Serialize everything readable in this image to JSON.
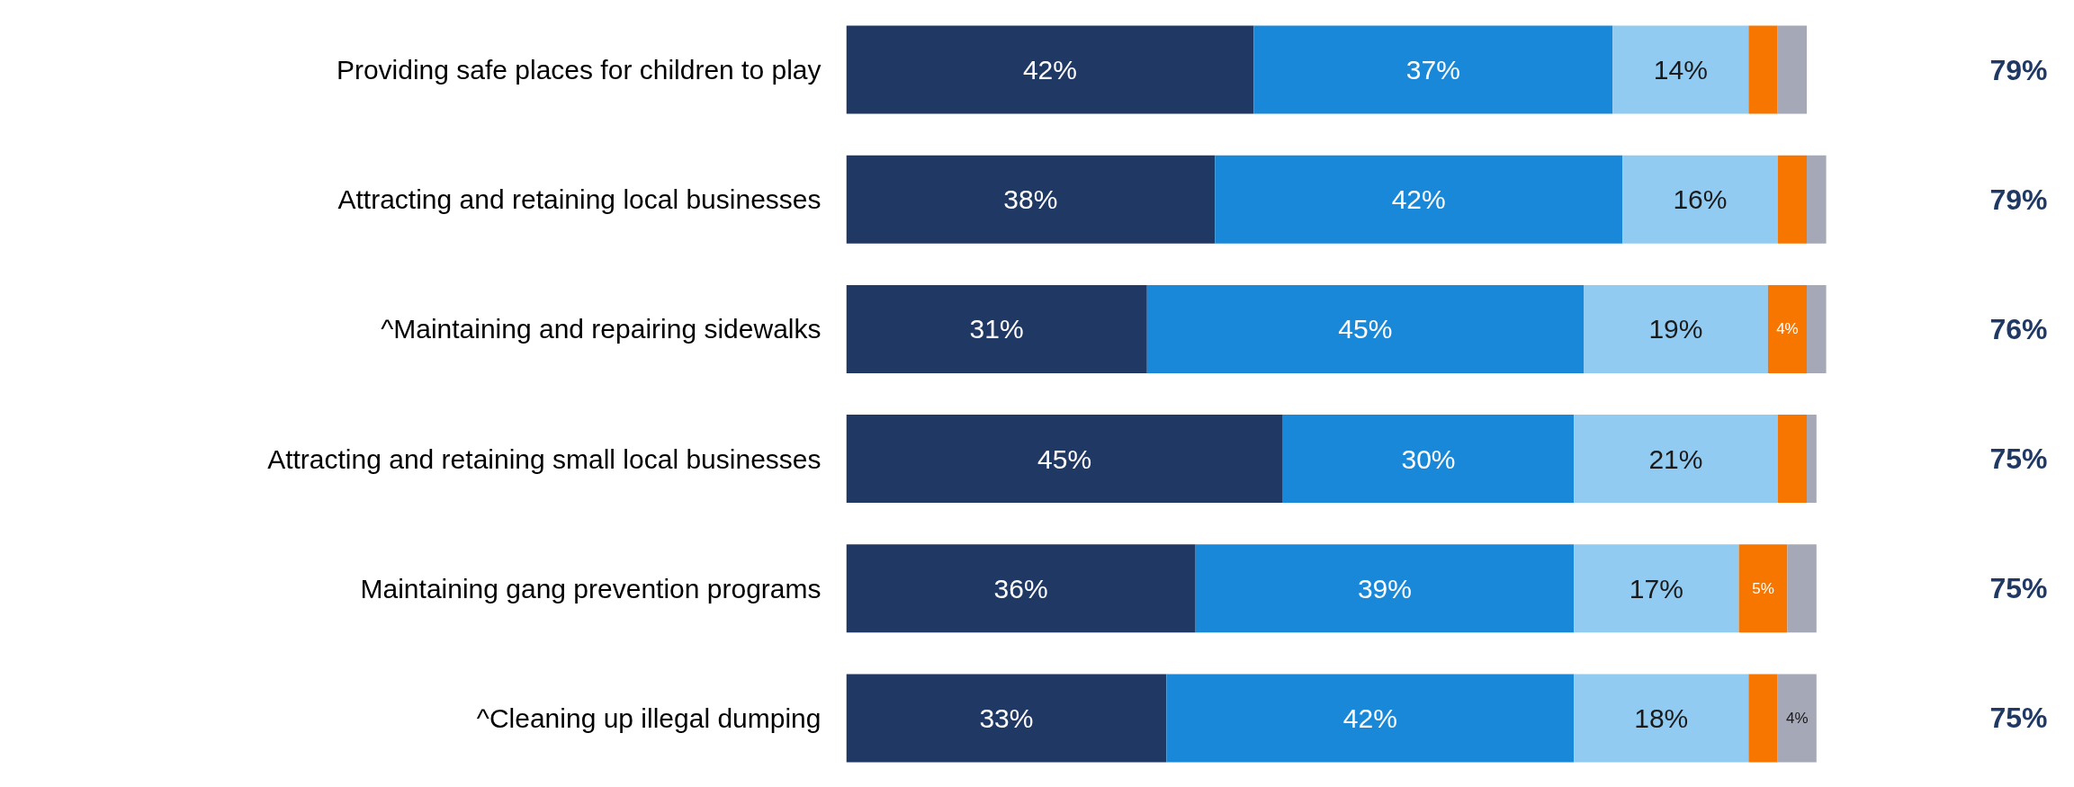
{
  "chart_data": {
    "type": "bar",
    "orientation": "horizontal",
    "stacked": true,
    "categories": [
      "Providing safe places for children to play",
      "Attracting and retaining local businesses",
      "^Maintaining and repairing sidewalks",
      "Attracting and retaining small local businesses",
      "Maintaining gang prevention programs",
      "^Cleaning up illegal dumping"
    ],
    "series": [
      {
        "color": "#1f3864",
        "values": [
          42,
          38,
          31,
          45,
          36,
          33
        ],
        "value_labels": [
          "42%",
          "38%",
          "31%",
          "45%",
          "36%",
          "33%"
        ]
      },
      {
        "color": "#1a88d8",
        "values": [
          37,
          42,
          45,
          30,
          39,
          42
        ],
        "value_labels": [
          "37%",
          "42%",
          "45%",
          "30%",
          "39%",
          "42%"
        ]
      },
      {
        "color": "#92cbf2",
        "values": [
          14,
          16,
          19,
          21,
          17,
          18
        ],
        "value_labels": [
          "14%",
          "16%",
          "19%",
          "21%",
          "17%",
          "18%"
        ]
      },
      {
        "color": "#f77600",
        "values": [
          3,
          3,
          4,
          3,
          5,
          3
        ],
        "value_labels": [
          null,
          null,
          "4%",
          null,
          "5%",
          null
        ]
      },
      {
        "color": "#a5a8b6",
        "values": [
          3,
          2,
          2,
          1,
          3,
          4
        ],
        "value_labels": [
          null,
          null,
          null,
          null,
          null,
          "4%"
        ]
      }
    ],
    "annotations": [
      "79%",
      "79%",
      "76%",
      "75%",
      "75%",
      "75%"
    ],
    "grid": false
  }
}
